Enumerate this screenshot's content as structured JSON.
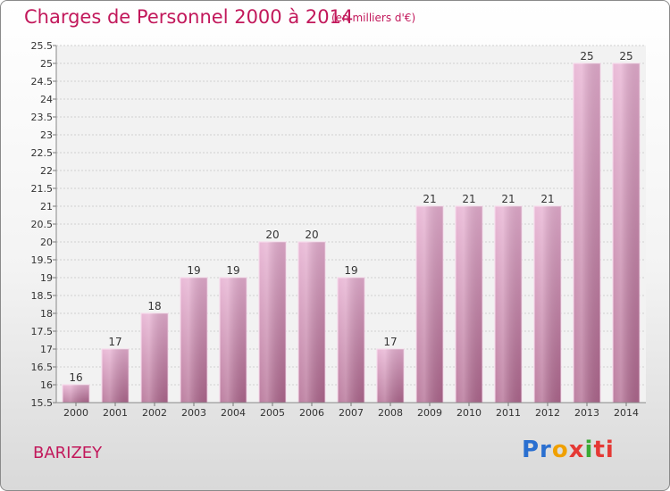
{
  "chart_data": {
    "type": "bar",
    "title": "Charges de Personnel 2000 à 2014",
    "subtitle": "(en milliers d'€)",
    "categories": [
      "2000",
      "2001",
      "2002",
      "2003",
      "2004",
      "2005",
      "2006",
      "2007",
      "2008",
      "2009",
      "2010",
      "2011",
      "2012",
      "2013",
      "2014"
    ],
    "values": [
      16,
      17,
      18,
      19,
      19,
      20,
      20,
      19,
      17,
      21,
      21,
      21,
      21,
      25,
      25
    ],
    "ylim": [
      15.5,
      25.5
    ],
    "ytick_step": 0.5,
    "yticks": [
      "15.5",
      "16",
      "16.5",
      "17",
      "17.5",
      "18",
      "18.5",
      "19",
      "19.5",
      "20",
      "20.5",
      "21",
      "21.5",
      "22",
      "22.5",
      "23",
      "23.5",
      "24",
      "24.5",
      "25",
      "25.5"
    ],
    "grid": true,
    "legend": "none",
    "bar_color_top": "#e6aed0",
    "bar_color_bottom": "#b0688f"
  },
  "footer": {
    "commune": "BARIZEY",
    "logo": [
      "Pr",
      "o",
      "x",
      "i",
      "ti"
    ]
  }
}
